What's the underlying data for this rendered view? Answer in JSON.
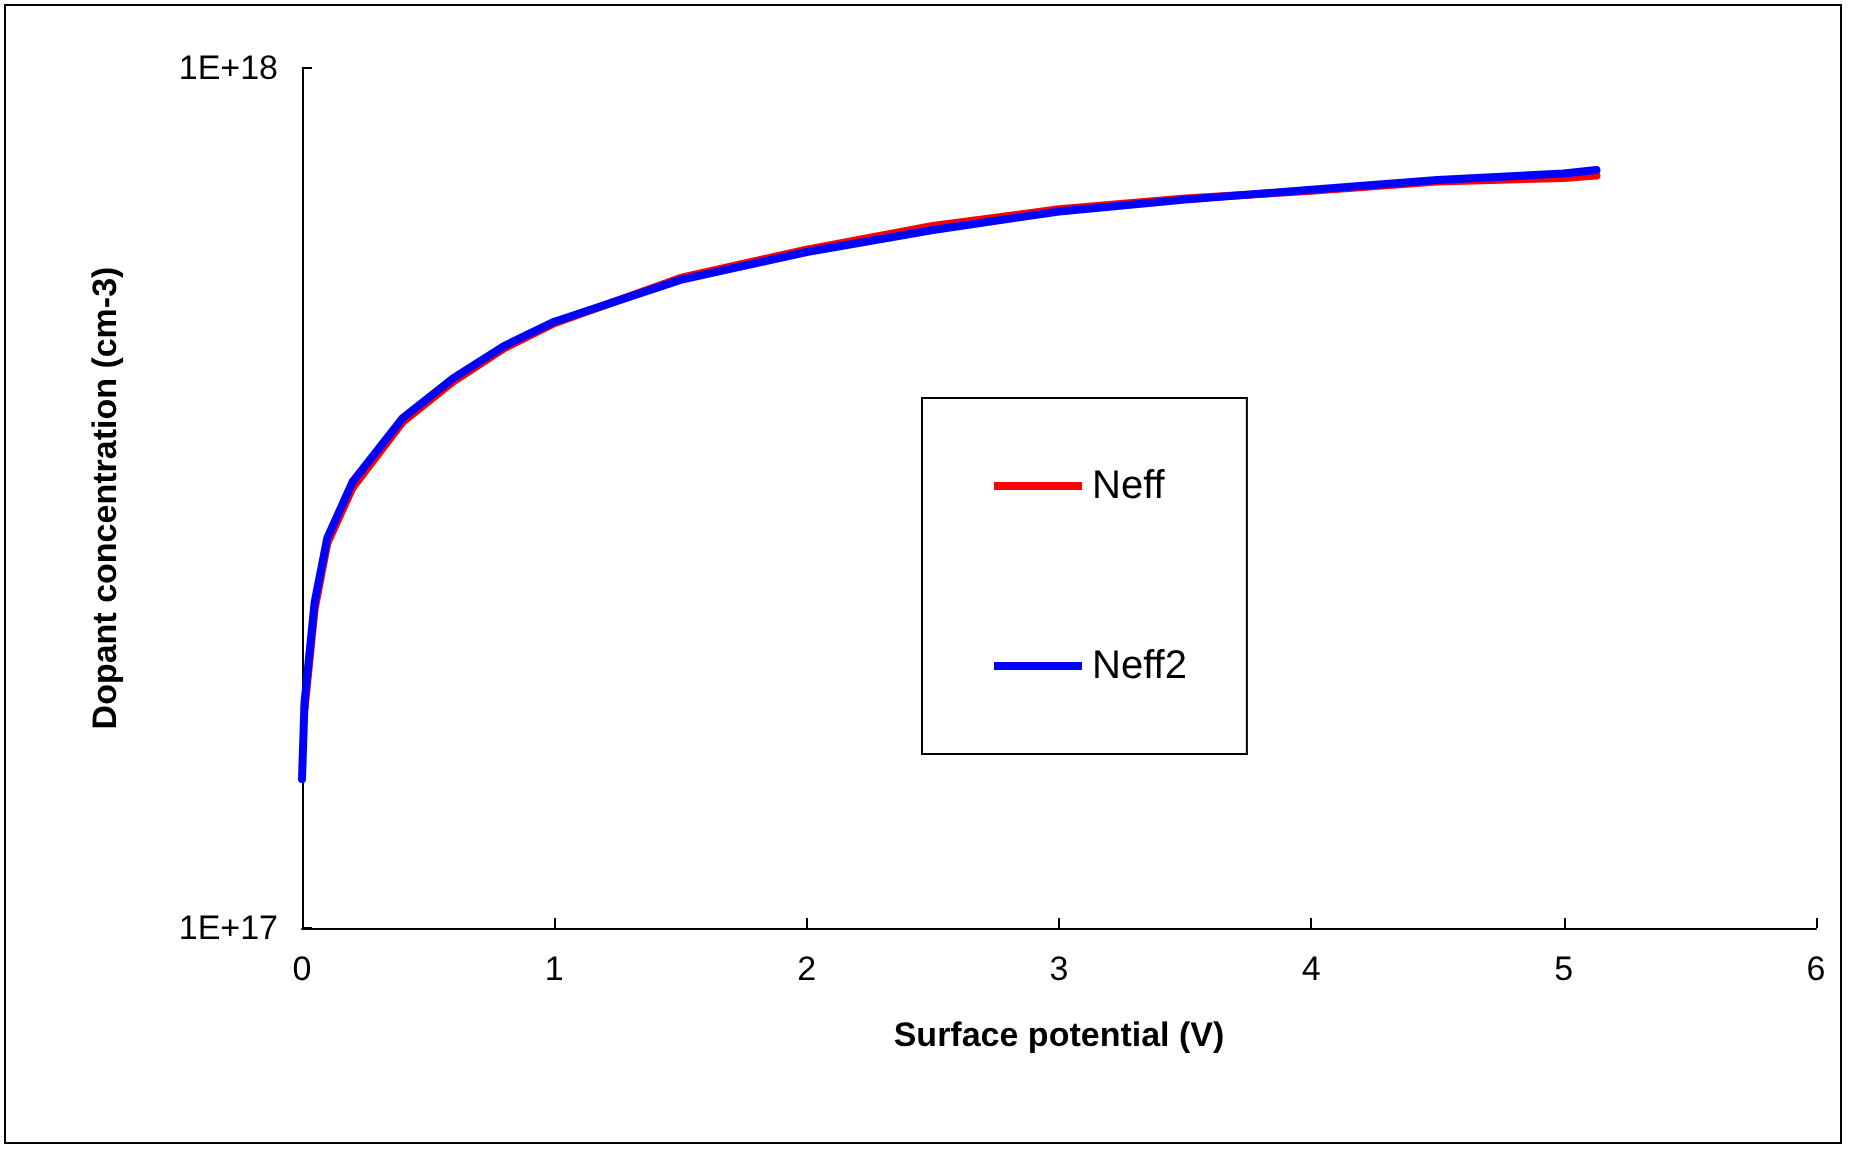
{
  "chart_data": {
    "type": "line",
    "xlabel": "Surface potential (V)",
    "ylabel": "Dopant concentration (cm-3)",
    "x": [
      0,
      0.01,
      0.05,
      0.1,
      0.2,
      0.4,
      0.6,
      0.8,
      1.0,
      1.5,
      2.0,
      2.5,
      3.0,
      3.5,
      4.0,
      4.5,
      5.0,
      5.13
    ],
    "series": [
      {
        "name": "Neff",
        "color": "#ff0000",
        "values": [
          null,
          1.8e+17,
          2.35e+17,
          2.8e+17,
          3.25e+17,
          3.88e+17,
          4.32e+17,
          4.72e+17,
          5.05e+17,
          5.7e+17,
          6.15e+17,
          6.55e+17,
          6.85e+17,
          7.05e+17,
          7.2e+17,
          7.38e+17,
          7.45e+17,
          7.5e+17
        ]
      },
      {
        "name": "Neff2",
        "color": "#0000ff",
        "values": [
          1.49e+17,
          1.83e+17,
          2.39e+17,
          2.84e+17,
          3.3e+17,
          3.92e+17,
          4.36e+17,
          4.75e+17,
          5.07e+17,
          5.67e+17,
          6.11e+17,
          6.48e+17,
          6.81e+17,
          7.03e+17,
          7.22e+17,
          7.41e+17,
          7.54e+17,
          7.61e+17
        ]
      }
    ],
    "xlim": [
      0,
      6
    ],
    "xticks": [
      0,
      1,
      2,
      3,
      4,
      5,
      6
    ],
    "ylim": [
      1e+17,
      1e+18
    ],
    "yticks": [
      {
        "value": 1e+17,
        "label": "1E+17"
      },
      {
        "value": 1e+18,
        "label": "1E+18"
      }
    ],
    "log": "y",
    "grid": false,
    "legend": "right",
    "marker": "none",
    "line_style": "solid"
  }
}
